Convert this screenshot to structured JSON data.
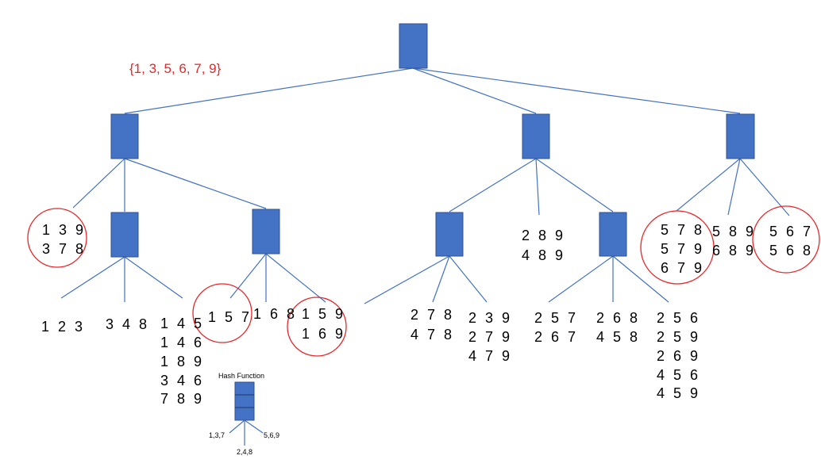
{
  "itemset": "{1, 3, 5, 6, 7, 9}",
  "leaves": {
    "l1": [
      "1 3 9",
      "3 7 8"
    ],
    "l2": [
      "1 2 3"
    ],
    "l3": [
      "3 4 8"
    ],
    "l4": [
      "1 4 5",
      "1 4 6",
      "1 8 9",
      "3 4 6",
      "7 8 9"
    ],
    "l5": [
      "1 5 7"
    ],
    "l6": [
      "1 6 8"
    ],
    "l7": [
      "1 5 9",
      "1 6 9"
    ],
    "l8": [
      "2 7 8",
      "4 7 8"
    ],
    "l9": [
      "2 3 9",
      "2 7 9",
      "4 7 9"
    ],
    "l10": [
      "2 8 9",
      "4 8 9"
    ],
    "l11": [
      "2 5 7",
      "2 6 7"
    ],
    "l12": [
      "2 6 8",
      "4 5 8"
    ],
    "l13": [
      "2 5 6",
      "2 5 9",
      "2 6 9",
      "4 5 6",
      "4 5 9"
    ],
    "l14": [
      "5 7 8",
      "5 7 9",
      "6 7 9"
    ],
    "l15": [
      "5 8 9",
      "6 8 9"
    ],
    "l16": [
      "5 6 7",
      "5 6 8"
    ]
  },
  "legend": {
    "title": "Hash Function",
    "left": "1,3,7",
    "middle": "2,4,8",
    "right": "5,6,9"
  },
  "colors": {
    "node": "#4472c4",
    "highlight": "#e8262a"
  }
}
